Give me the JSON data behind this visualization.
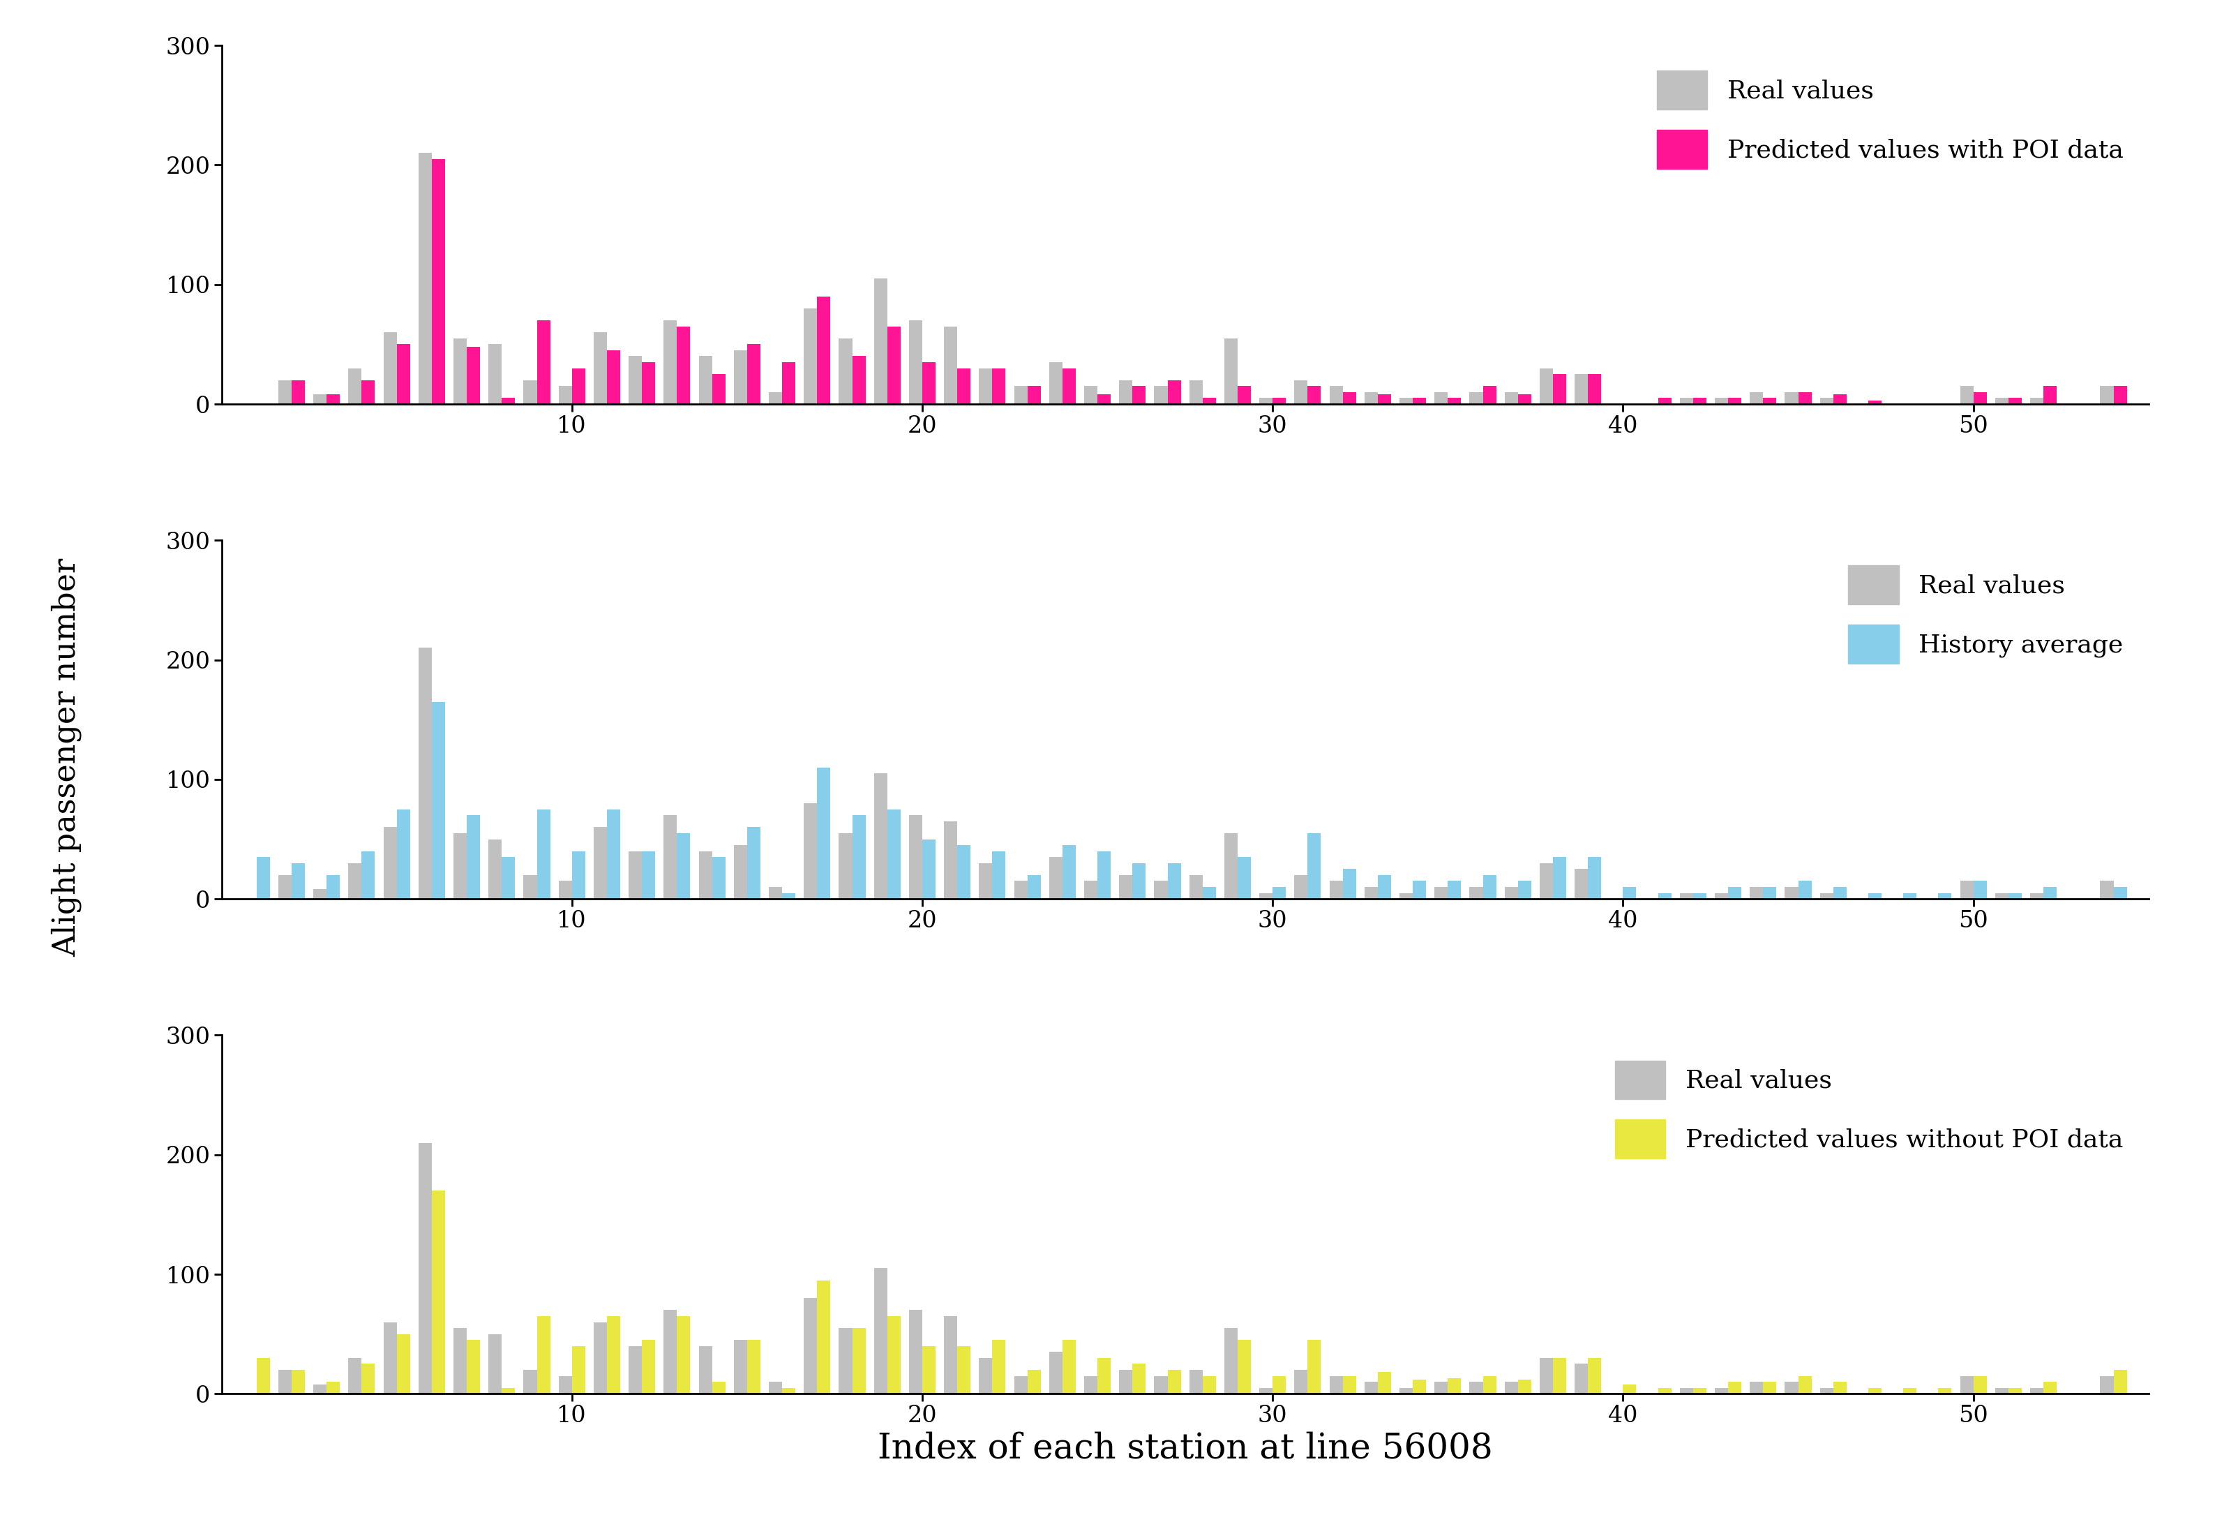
{
  "real_values": [
    0,
    20,
    8,
    30,
    60,
    210,
    55,
    50,
    20,
    15,
    60,
    40,
    70,
    40,
    45,
    10,
    80,
    55,
    105,
    70,
    65,
    30,
    15,
    35,
    15,
    20,
    15,
    20,
    55,
    5,
    20,
    15,
    10,
    5,
    10,
    10,
    10,
    30,
    25,
    0,
    0,
    5,
    5,
    10,
    10,
    5,
    0,
    0,
    0,
    15,
    5,
    5,
    0,
    15
  ],
  "predicted_poi": [
    0,
    20,
    8,
    20,
    50,
    205,
    48,
    5,
    70,
    30,
    45,
    35,
    65,
    25,
    50,
    35,
    90,
    40,
    65,
    35,
    30,
    30,
    15,
    30,
    8,
    15,
    20,
    5,
    15,
    5,
    15,
    10,
    8,
    5,
    5,
    15,
    8,
    25,
    25,
    0,
    5,
    5,
    5,
    5,
    10,
    8,
    3,
    0,
    0,
    10,
    5,
    15,
    0,
    15
  ],
  "history_average": [
    35,
    30,
    20,
    40,
    75,
    165,
    70,
    35,
    75,
    40,
    75,
    40,
    55,
    35,
    60,
    5,
    110,
    70,
    75,
    50,
    45,
    40,
    20,
    45,
    40,
    30,
    30,
    10,
    35,
    10,
    55,
    25,
    20,
    15,
    15,
    20,
    15,
    35,
    35,
    10,
    5,
    5,
    10,
    10,
    15,
    10,
    5,
    5,
    5,
    15,
    5,
    10,
    0,
    10
  ],
  "predicted_no_poi": [
    30,
    20,
    10,
    25,
    50,
    170,
    45,
    5,
    65,
    40,
    65,
    45,
    65,
    10,
    45,
    5,
    95,
    55,
    65,
    40,
    40,
    45,
    20,
    45,
    30,
    25,
    20,
    15,
    45,
    15,
    45,
    15,
    18,
    12,
    13,
    15,
    12,
    30,
    30,
    8,
    5,
    5,
    10,
    10,
    15,
    10,
    5,
    5,
    5,
    15,
    5,
    10,
    0,
    20
  ],
  "real_color": "#c0c0c0",
  "poi_color": "#ff1493",
  "history_color": "#87ceeb",
  "no_poi_color": "#e8e840",
  "ylabel": "Alight passenger number",
  "xlabel": "Index of each station at line 56008",
  "ylim": [
    0,
    300
  ],
  "yticks": [
    0,
    100,
    200,
    300
  ],
  "xticks": [
    10,
    20,
    30,
    40,
    50
  ],
  "legend1": [
    "Real values",
    "Predicted values with POI data"
  ],
  "legend2": [
    "Real values",
    "History average"
  ],
  "legend3": [
    "Real values",
    "Predicted values without POI data"
  ],
  "bar_width": 0.38,
  "n_stations": 54
}
